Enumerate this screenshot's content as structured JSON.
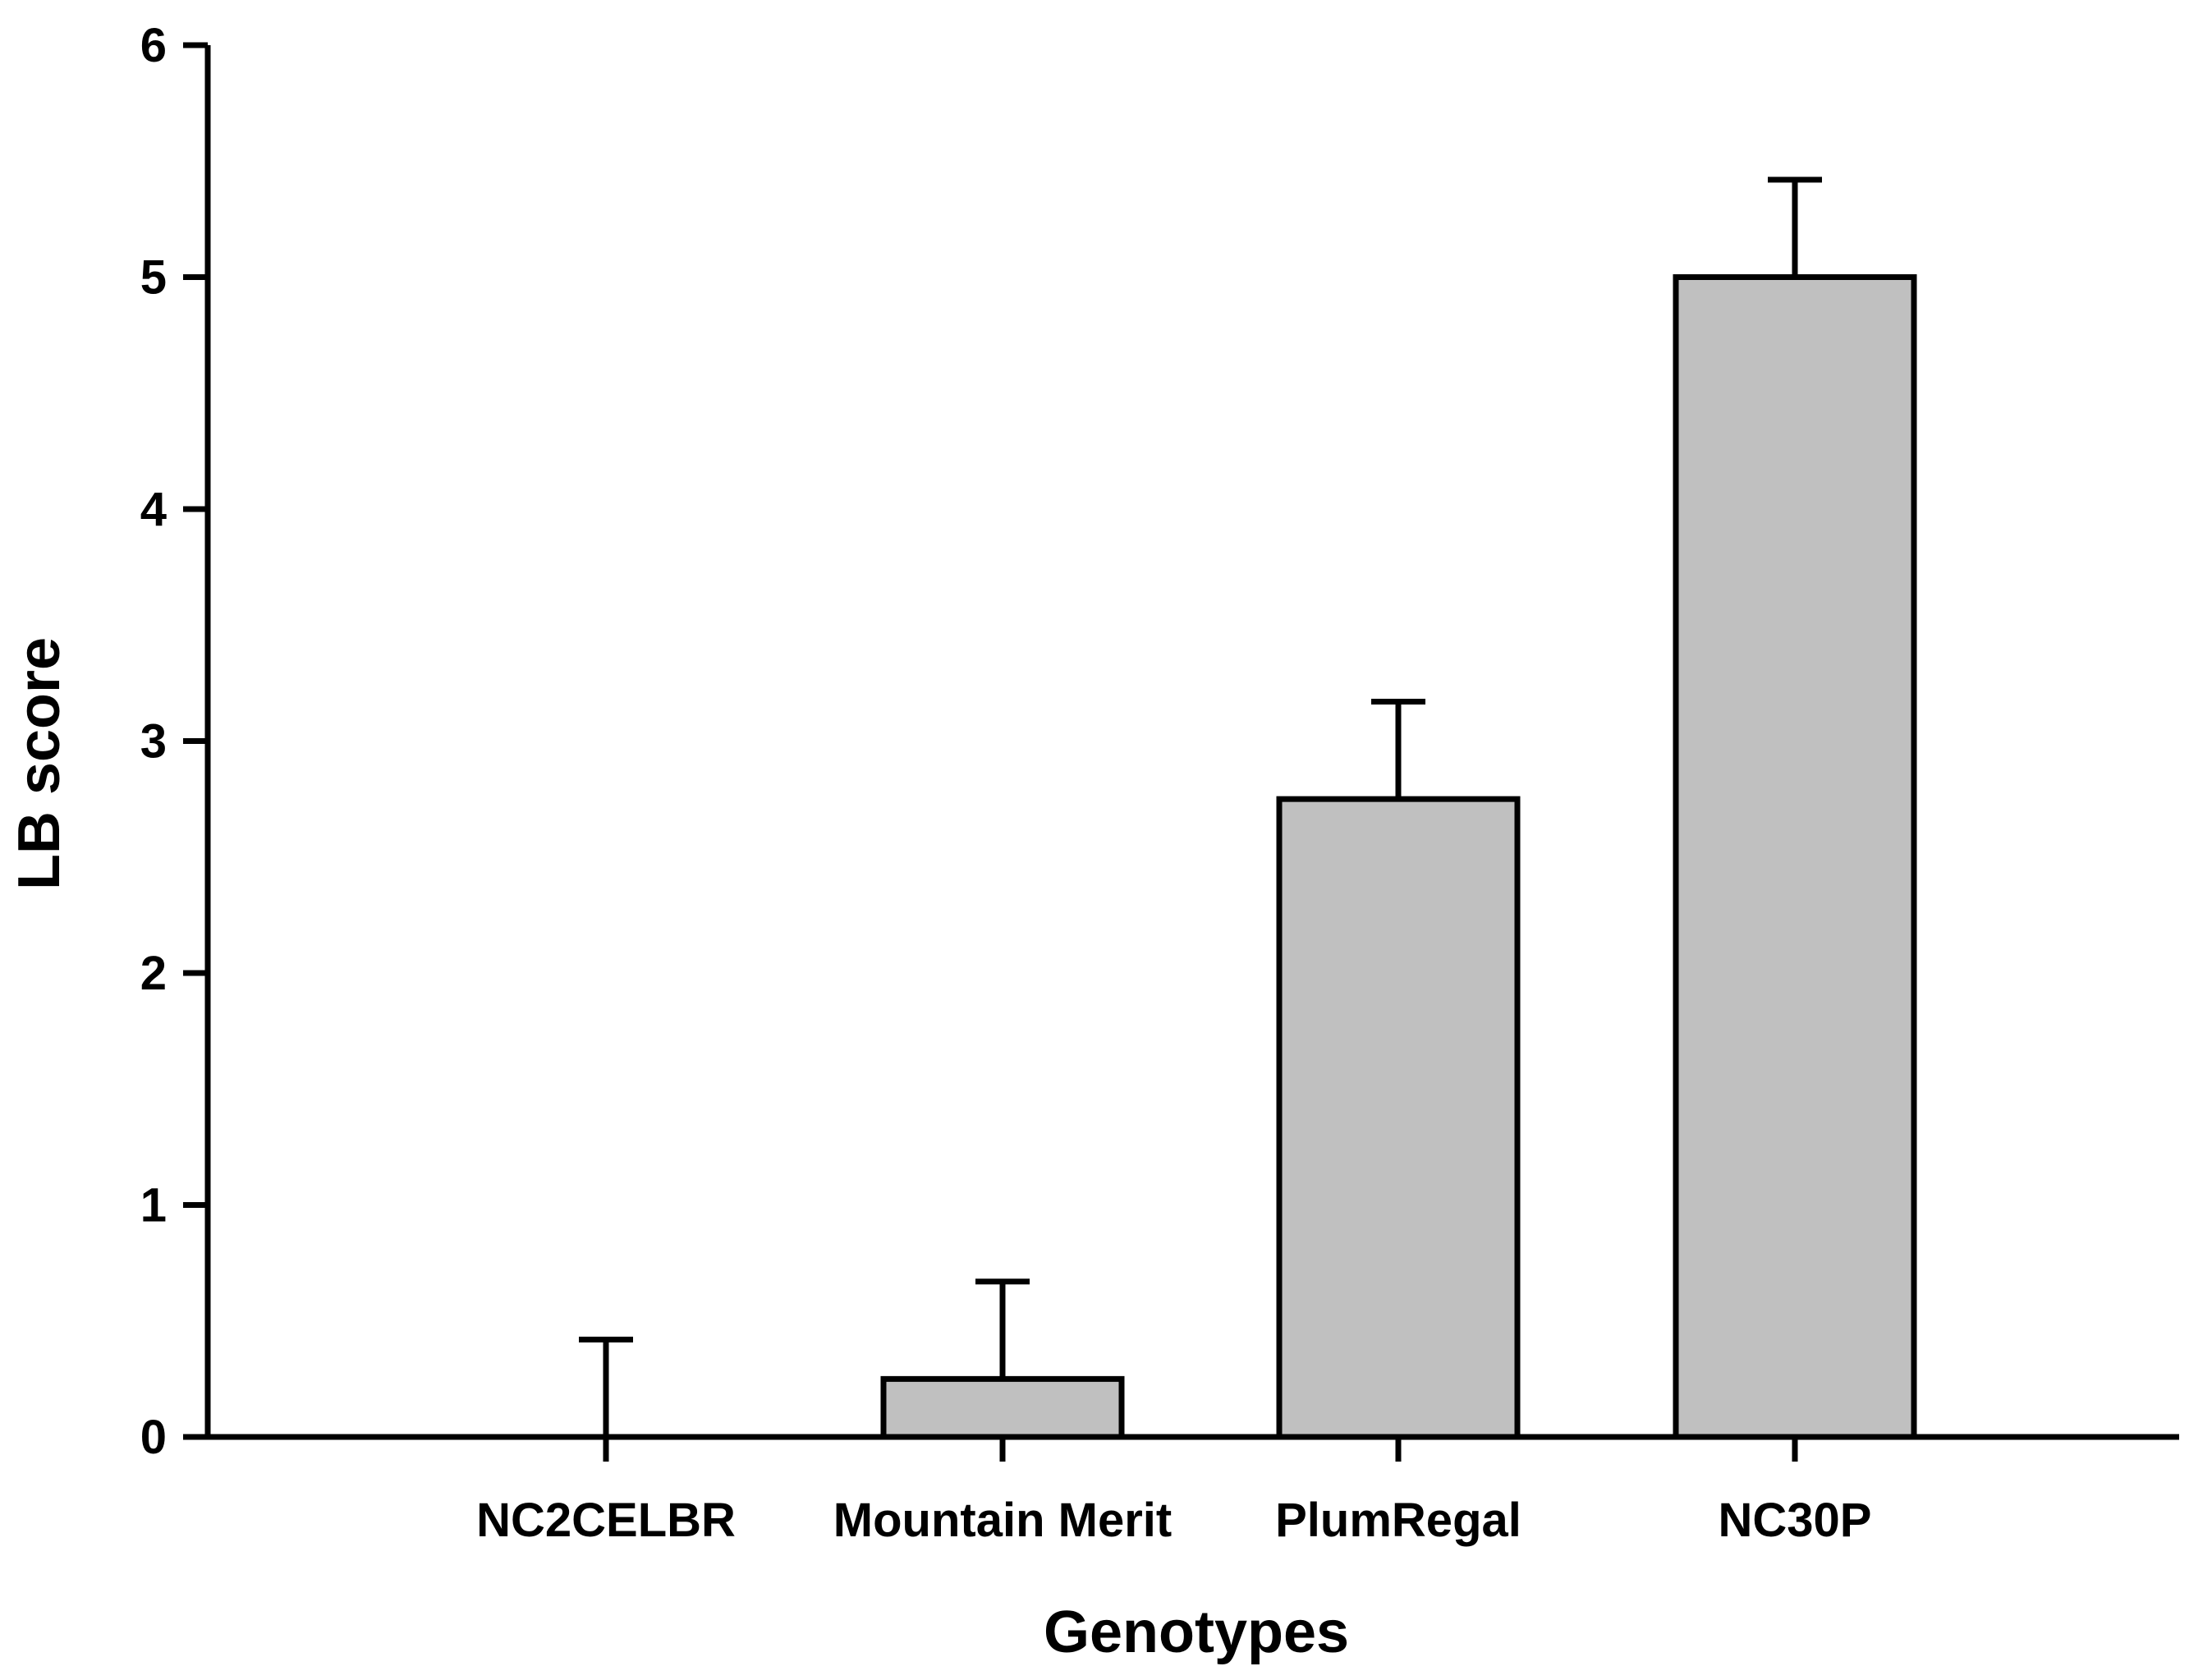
{
  "chart_data": {
    "type": "bar",
    "title": "",
    "xlabel": "Genotypes",
    "ylabel": "LB score",
    "categories": [
      "NC2CELBR",
      "Mountain Merit",
      "PlumRegal",
      "NC30P"
    ],
    "values": [
      0,
      0.25,
      2.75,
      5.0
    ],
    "errors": [
      0.42,
      0.42,
      0.42,
      0.42
    ],
    "ylim": [
      0,
      6
    ],
    "yticks": [
      "0",
      "1",
      "2",
      "3",
      "4",
      "5",
      "6"
    ],
    "grid": false,
    "legend": "none",
    "colors": {
      "bar_fill": "#c0c0c0",
      "bar_stroke": "#000000",
      "axis": "#000000"
    }
  }
}
